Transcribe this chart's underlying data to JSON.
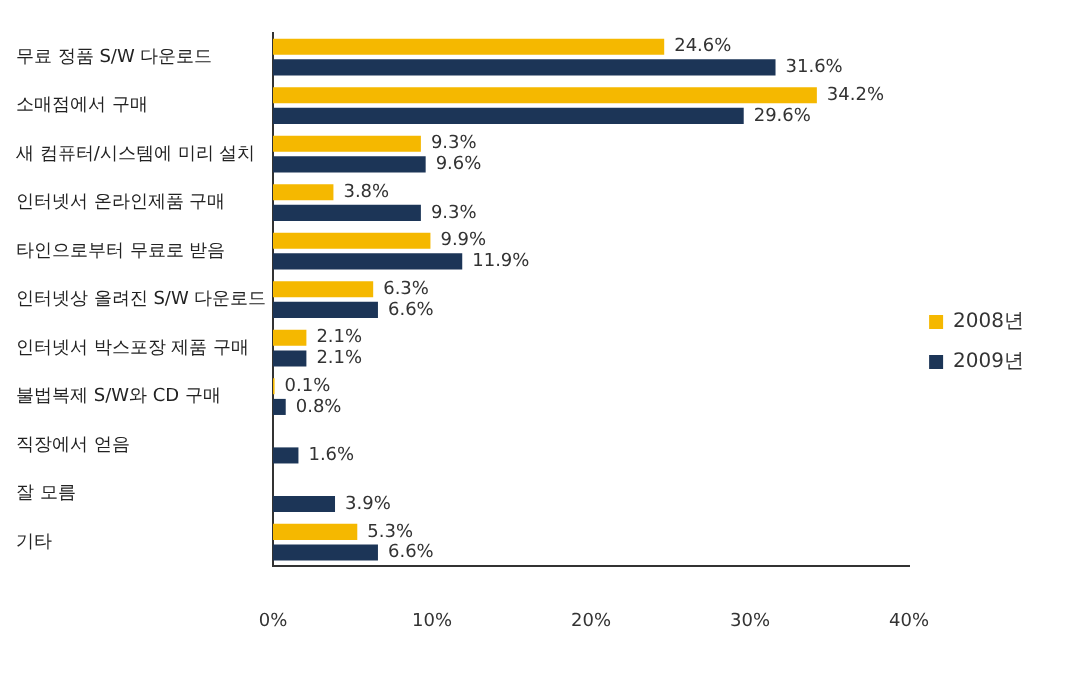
{
  "chart_data": {
    "type": "bar",
    "orientation": "horizontal",
    "categories": [
      "무료 정품 S/W 다운로드",
      "소매점에서 구매",
      "새 컴퓨터/시스템에 미리 설치",
      "인터넷서 온라인제품 구매",
      "타인으로부터 무료로 받음",
      "인터넷상 올려진 S/W 다운로드",
      "인터넷서 박스포장 제품 구매",
      "불법복제 S/W와 CD 구매",
      "직장에서 얻음",
      "잘 모름",
      "기타"
    ],
    "series": [
      {
        "name": "2008년",
        "color": "#f5b800",
        "values": [
          24.6,
          34.2,
          9.3,
          3.8,
          9.9,
          6.3,
          2.1,
          0.1,
          null,
          null,
          5.3
        ],
        "value_labels": [
          "24.6%",
          "34.2%",
          "9.3%",
          "3.8%",
          "9.9%",
          "6.3%",
          "2.1%",
          "0.1%",
          null,
          null,
          "5.3%"
        ]
      },
      {
        "name": "2009년",
        "color": "#1c3557",
        "values": [
          31.6,
          29.6,
          9.6,
          9.3,
          11.9,
          6.6,
          2.1,
          0.8,
          1.6,
          3.9,
          6.6
        ],
        "value_labels": [
          "31.6%",
          "29.6%",
          "9.6%",
          "9.3%",
          "11.9%",
          "6.6%",
          "2.1%",
          "0.8%",
          "1.6%",
          "3.9%",
          "6.6%"
        ]
      }
    ],
    "xlim": [
      0,
      40
    ],
    "xticks": [
      {
        "value": 0,
        "label": "0%"
      },
      {
        "value": 10,
        "label": "10%"
      },
      {
        "value": 20,
        "label": "20%"
      },
      {
        "value": 30,
        "label": "30%"
      },
      {
        "value": 40,
        "label": "40%"
      }
    ],
    "grid": false,
    "legend": "right"
  }
}
